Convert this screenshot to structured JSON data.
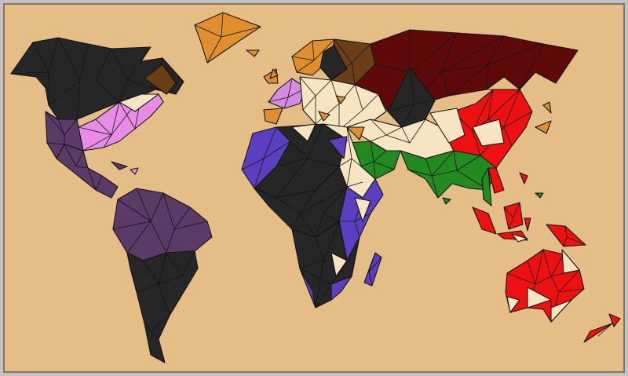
{
  "colors": {
    "background": "#e4bd87",
    "frame": "#8a7357",
    "outline": "#141414"
  },
  "regions": [
    {
      "id": "north-america-north",
      "fill": "#262626"
    },
    {
      "id": "north-america-east",
      "fill": "#e98ce6"
    },
    {
      "id": "north-america-west",
      "fill": "#5a3a66"
    },
    {
      "id": "central-america",
      "fill": "#5a3a66"
    },
    {
      "id": "south-america-north",
      "fill": "#5a3a66"
    },
    {
      "id": "south-america-south",
      "fill": "#262626"
    },
    {
      "id": "greenland",
      "fill": "#e18f2c"
    },
    {
      "id": "iceland",
      "fill": "#e18f2c"
    },
    {
      "id": "western-europe",
      "fill": "#d58ce0"
    },
    {
      "id": "northern-europe",
      "fill": "#e18f2c"
    },
    {
      "id": "eastern-europe",
      "fill": "#f6e4c3"
    },
    {
      "id": "scandinavia-dark",
      "fill": "#6b3f16"
    },
    {
      "id": "russia",
      "fill": "#5e0a0a"
    },
    {
      "id": "central-asia",
      "fill": "#262626"
    },
    {
      "id": "middle-east",
      "fill": "#228a1e"
    },
    {
      "id": "india",
      "fill": "#228a1e"
    },
    {
      "id": "china",
      "fill": "#ee1111"
    },
    {
      "id": "japan",
      "fill": "#e18f2c"
    },
    {
      "id": "north-africa-west",
      "fill": "#5b3fc0"
    },
    {
      "id": "north-africa-center",
      "fill": "#262626"
    },
    {
      "id": "north-africa-east",
      "fill": "#f6e4c3"
    },
    {
      "id": "central-africa",
      "fill": "#262626"
    },
    {
      "id": "east-africa",
      "fill": "#5b3fc0"
    },
    {
      "id": "southern-africa",
      "fill": "#262626"
    },
    {
      "id": "madagascar",
      "fill": "#5b3fc0"
    },
    {
      "id": "southeast-asia",
      "fill": "#ee1111"
    },
    {
      "id": "indonesia",
      "fill": "#ee1111"
    },
    {
      "id": "australia",
      "fill": "#ee1111"
    },
    {
      "id": "new-zealand",
      "fill": "#ee1111"
    },
    {
      "id": "arabia",
      "fill": "#f6e4c3"
    }
  ]
}
